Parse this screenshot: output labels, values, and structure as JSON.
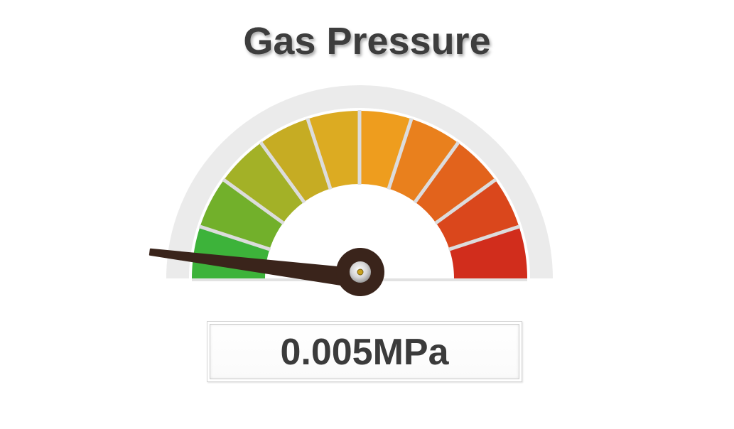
{
  "title": "Gas Pressure",
  "readout": {
    "value": "0.005",
    "unit": "MPa",
    "text": "0.005MPa"
  },
  "gauge": {
    "needle_level": 0.04,
    "segment_colors": [
      "#3db33a",
      "#72b02b",
      "#a3b127",
      "#c6ac23",
      "#dcab22",
      "#ee9d1e",
      "#e9801d",
      "#e2631c",
      "#da471c",
      "#d12d1c"
    ],
    "track_color": "#ebebeb",
    "tick_color": "#dcdcdc",
    "needle_color": "#3a241b",
    "hub_center_color": "#c8a21e"
  }
}
